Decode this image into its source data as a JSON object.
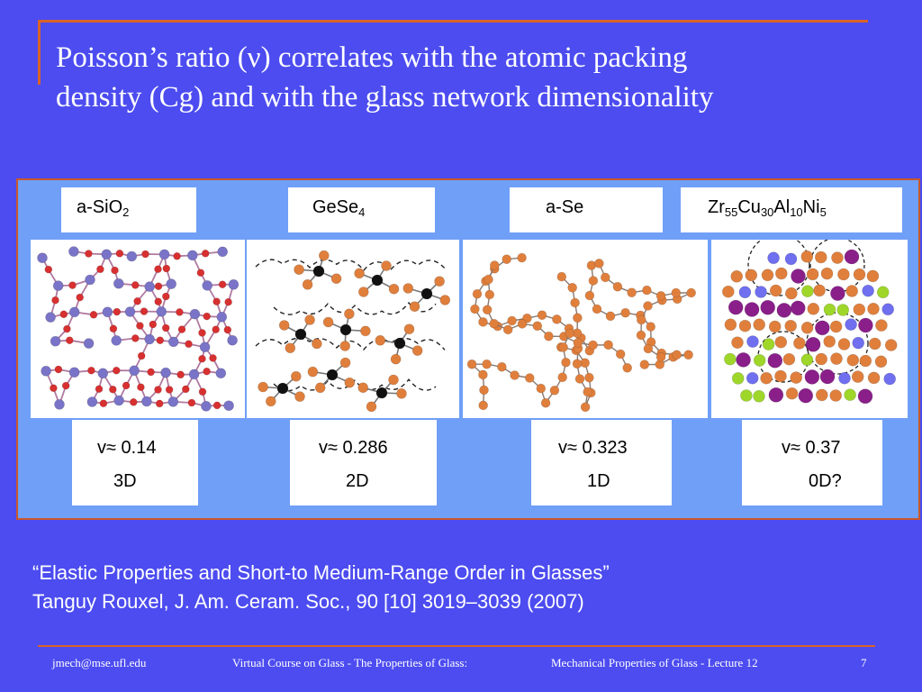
{
  "slide": {
    "title_line1": "Poisson’s ratio (ν) correlates with the atomic packing",
    "title_line2": "density (Cg) and with the glass network dimensionality"
  },
  "materials": [
    {
      "name_parts": [
        "a-SiO",
        "2"
      ],
      "nu": "v≈ 0.14",
      "dim": "3D"
    },
    {
      "name_parts": [
        "GeSe",
        "4"
      ],
      "nu": "v≈ 0.286",
      "dim": "2D"
    },
    {
      "name_parts": [
        "a-Se"
      ],
      "nu": "v≈ 0.323",
      "dim": "1D"
    },
    {
      "name_parts": [
        "Zr",
        "55",
        "Cu",
        "30",
        "Al",
        "10",
        "Ni",
        "5"
      ],
      "nu": "v≈ 0.37",
      "dim": "0D?"
    }
  ],
  "reference": {
    "line1": "“Elastic Properties and Short-to Medium-Range Order in Glasses”",
    "line2": "Tanguy Rouxel, J. Am. Ceram. Soc., 90 [10] 3019–3039 (2007)"
  },
  "footer": {
    "email": "jmech@mse.ufl.edu",
    "course": "Virtual Course on Glass - The Properties of Glass:",
    "lecture": "Mechanical Properties of Glass - Lecture 12",
    "page": "7"
  },
  "colors": {
    "background": "#4c4cf0",
    "accent": "#d9642a",
    "panel": "#6f9ff7"
  }
}
